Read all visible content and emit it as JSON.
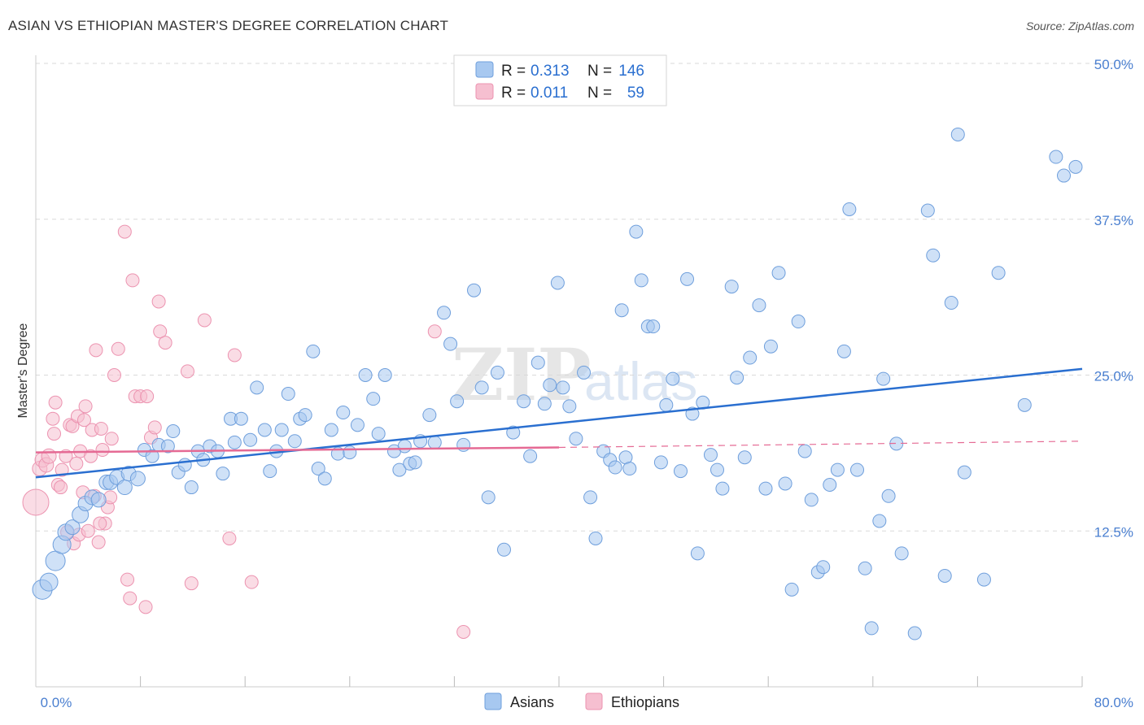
{
  "title": "ASIAN VS ETHIOPIAN MASTER'S DEGREE CORRELATION CHART",
  "source": "Source: ZipAtlas.com",
  "watermark": {
    "zip": "ZIP",
    "atlas": "atlas"
  },
  "colors": {
    "asians": "#a7c8f0",
    "asians_edge": "#6f9fdc",
    "asians_line": "#2a6fd0",
    "ethiopians": "#f6bfd0",
    "ethiopians_edge": "#ec93b0",
    "ethiopians_line": "#e56a94",
    "axis_text": "#4a7fd0",
    "grid": "#d9d9d9"
  },
  "legend": {
    "rows": [
      {
        "r_label": "R =",
        "r_value": "0.313",
        "n_label": "N =",
        "n_value": "146"
      },
      {
        "r_label": "R =",
        "r_value": "0.011",
        "n_label": "N =",
        "n_value": "59"
      }
    ]
  },
  "bottom_legend": [
    "Asians",
    "Ethiopians"
  ],
  "chart_data": {
    "type": "scatter",
    "title": "ASIAN VS ETHIOPIAN MASTER'S DEGREE CORRELATION CHART",
    "xlabel": "",
    "ylabel": "Master's Degree",
    "xlim": [
      0,
      80
    ],
    "ylim": [
      0,
      50
    ],
    "x_tick_labels": [
      "0.0%",
      "80.0%"
    ],
    "y_ticks": [
      12.5,
      25.0,
      37.5,
      50.0
    ],
    "y_tick_labels": [
      "12.5%",
      "25.0%",
      "37.5%",
      "50.0%"
    ],
    "grid": "horizontal dashed",
    "legend_position": "top-center",
    "series": [
      {
        "name": "Asians",
        "trend": {
          "x": [
            0,
            80
          ],
          "y": [
            16.8,
            25.5
          ]
        },
        "points": [
          [
            0.5,
            7.8,
            12
          ],
          [
            1.0,
            8.4,
            11
          ],
          [
            1.5,
            10.1,
            12
          ],
          [
            2.0,
            11.4,
            11
          ],
          [
            2.3,
            12.4,
            10
          ],
          [
            2.8,
            12.8,
            9
          ],
          [
            3.4,
            13.8,
            10
          ],
          [
            3.8,
            14.7,
            9
          ],
          [
            4.3,
            15.2,
            9
          ],
          [
            4.8,
            15.0,
            9
          ],
          [
            5.4,
            16.4,
            9
          ],
          [
            5.7,
            16.4,
            9
          ],
          [
            6.2,
            16.8,
            9
          ],
          [
            6.8,
            16.0,
            9
          ],
          [
            7.1,
            17.1,
            9
          ],
          [
            7.8,
            16.7,
            9
          ],
          [
            8.3,
            19.0,
            8
          ],
          [
            8.9,
            18.5,
            8
          ],
          [
            9.4,
            19.4,
            8
          ],
          [
            10.1,
            19.3,
            8
          ],
          [
            10.5,
            20.5,
            8
          ],
          [
            10.9,
            17.2,
            8
          ],
          [
            11.4,
            17.8,
            8
          ],
          [
            11.9,
            16.0,
            8
          ],
          [
            12.4,
            18.9,
            8
          ],
          [
            12.8,
            18.2,
            8
          ],
          [
            13.3,
            19.3,
            8
          ],
          [
            13.9,
            18.9,
            8
          ],
          [
            14.3,
            17.1,
            8
          ],
          [
            14.9,
            21.5,
            8
          ],
          [
            15.2,
            19.6,
            8
          ],
          [
            15.7,
            21.5,
            8
          ],
          [
            16.4,
            19.8,
            8
          ],
          [
            16.9,
            24.0,
            8
          ],
          [
            17.5,
            20.6,
            8
          ],
          [
            17.9,
            17.3,
            8
          ],
          [
            18.4,
            18.9,
            8
          ],
          [
            18.8,
            20.6,
            8
          ],
          [
            19.3,
            23.5,
            8
          ],
          [
            19.8,
            19.7,
            8
          ],
          [
            20.2,
            21.5,
            8
          ],
          [
            20.6,
            21.8,
            8
          ],
          [
            21.2,
            26.9,
            8
          ],
          [
            21.6,
            17.5,
            8
          ],
          [
            22.1,
            16.7,
            8
          ],
          [
            22.6,
            20.6,
            8
          ],
          [
            23.1,
            18.7,
            8
          ],
          [
            23.5,
            22.0,
            8
          ],
          [
            24.0,
            18.8,
            8
          ],
          [
            24.6,
            21.0,
            8
          ],
          [
            25.2,
            25.0,
            8
          ],
          [
            25.8,
            23.1,
            8
          ],
          [
            26.2,
            20.3,
            8
          ],
          [
            26.7,
            25.0,
            8
          ],
          [
            27.4,
            18.9,
            8
          ],
          [
            27.8,
            17.4,
            8
          ],
          [
            28.2,
            19.3,
            8
          ],
          [
            28.6,
            17.9,
            8
          ],
          [
            29.0,
            18.0,
            8
          ],
          [
            29.4,
            19.7,
            8
          ],
          [
            30.1,
            21.8,
            8
          ],
          [
            30.5,
            19.6,
            8
          ],
          [
            31.2,
            30.0,
            8
          ],
          [
            31.7,
            27.5,
            8
          ],
          [
            32.2,
            22.9,
            8
          ],
          [
            32.7,
            19.4,
            8
          ],
          [
            33.5,
            31.8,
            8
          ],
          [
            34.1,
            24.0,
            8
          ],
          [
            34.6,
            15.2,
            8
          ],
          [
            35.3,
            25.2,
            8
          ],
          [
            35.8,
            11.0,
            8
          ],
          [
            36.5,
            20.4,
            8
          ],
          [
            37.3,
            22.9,
            8
          ],
          [
            37.8,
            18.5,
            8
          ],
          [
            38.4,
            26.0,
            8
          ],
          [
            38.9,
            22.7,
            8
          ],
          [
            39.3,
            24.2,
            8
          ],
          [
            39.9,
            32.4,
            8
          ],
          [
            40.3,
            24.0,
            8
          ],
          [
            40.8,
            22.5,
            8
          ],
          [
            41.3,
            19.9,
            8
          ],
          [
            41.9,
            25.2,
            8
          ],
          [
            42.4,
            15.2,
            8
          ],
          [
            42.8,
            11.9,
            8
          ],
          [
            43.4,
            18.9,
            8
          ],
          [
            43.9,
            18.2,
            8
          ],
          [
            44.3,
            17.6,
            8
          ],
          [
            44.8,
            30.2,
            8
          ],
          [
            45.1,
            18.4,
            8
          ],
          [
            45.4,
            17.5,
            8
          ],
          [
            45.9,
            36.5,
            8
          ],
          [
            46.3,
            32.6,
            8
          ],
          [
            46.8,
            28.9,
            8
          ],
          [
            47.2,
            28.9,
            8
          ],
          [
            47.8,
            18.0,
            8
          ],
          [
            48.2,
            22.6,
            8
          ],
          [
            48.7,
            24.7,
            8
          ],
          [
            49.3,
            17.3,
            8
          ],
          [
            49.8,
            32.7,
            8
          ],
          [
            50.2,
            21.9,
            8
          ],
          [
            50.6,
            10.7,
            8
          ],
          [
            51.0,
            22.8,
            8
          ],
          [
            51.6,
            18.6,
            8
          ],
          [
            52.1,
            17.4,
            8
          ],
          [
            52.5,
            15.9,
            8
          ],
          [
            53.2,
            32.1,
            8
          ],
          [
            53.6,
            24.8,
            8
          ],
          [
            54.2,
            18.4,
            8
          ],
          [
            54.6,
            26.4,
            8
          ],
          [
            55.3,
            30.6,
            8
          ],
          [
            55.8,
            15.9,
            8
          ],
          [
            56.2,
            27.3,
            8
          ],
          [
            56.8,
            33.2,
            8
          ],
          [
            57.3,
            16.3,
            8
          ],
          [
            57.8,
            7.8,
            8
          ],
          [
            58.3,
            29.3,
            8
          ],
          [
            58.8,
            18.9,
            8
          ],
          [
            59.3,
            15.0,
            8
          ],
          [
            59.8,
            9.2,
            8
          ],
          [
            60.2,
            9.6,
            8
          ],
          [
            60.7,
            16.2,
            8
          ],
          [
            61.3,
            17.4,
            8
          ],
          [
            61.8,
            26.9,
            8
          ],
          [
            62.2,
            38.3,
            8
          ],
          [
            62.8,
            17.4,
            8
          ],
          [
            63.4,
            9.5,
            8
          ],
          [
            63.9,
            4.7,
            8
          ],
          [
            64.5,
            13.3,
            8
          ],
          [
            64.8,
            24.7,
            8
          ],
          [
            65.2,
            15.3,
            8
          ],
          [
            65.8,
            19.5,
            8
          ],
          [
            66.2,
            10.7,
            8
          ],
          [
            67.2,
            4.3,
            8
          ],
          [
            68.2,
            38.2,
            8
          ],
          [
            68.6,
            34.6,
            8
          ],
          [
            69.5,
            8.9,
            8
          ],
          [
            70.0,
            30.8,
            8
          ],
          [
            70.5,
            44.3,
            8
          ],
          [
            71.0,
            17.2,
            8
          ],
          [
            72.5,
            8.6,
            8
          ],
          [
            73.6,
            33.2,
            8
          ],
          [
            75.6,
            22.6,
            8
          ],
          [
            78.0,
            42.5,
            8
          ],
          [
            78.6,
            41.0,
            8
          ],
          [
            79.5,
            41.7,
            8
          ]
        ]
      },
      {
        "name": "Ethiopians",
        "trend": {
          "x": [
            0,
            40
          ],
          "y": [
            18.8,
            19.2
          ]
        },
        "trend_extension": {
          "x": [
            40,
            80
          ],
          "y": [
            19.2,
            19.7
          ]
        },
        "points": [
          [
            0.0,
            14.8,
            16
          ],
          [
            0.3,
            17.5,
            9
          ],
          [
            0.5,
            18.2,
            9
          ],
          [
            0.8,
            17.8,
            9
          ],
          [
            1.0,
            18.5,
            9
          ],
          [
            1.3,
            21.5,
            8
          ],
          [
            1.4,
            20.3,
            8
          ],
          [
            1.5,
            22.8,
            8
          ],
          [
            1.7,
            16.2,
            8
          ],
          [
            1.9,
            16.0,
            8
          ],
          [
            2.0,
            17.4,
            8
          ],
          [
            2.3,
            18.5,
            8
          ],
          [
            2.4,
            12.4,
            8
          ],
          [
            2.6,
            21.0,
            8
          ],
          [
            2.8,
            20.9,
            8
          ],
          [
            2.9,
            11.5,
            8
          ],
          [
            3.1,
            17.9,
            8
          ],
          [
            3.2,
            21.7,
            8
          ],
          [
            3.3,
            12.2,
            8
          ],
          [
            3.4,
            18.9,
            8
          ],
          [
            3.6,
            15.6,
            8
          ],
          [
            3.7,
            21.4,
            8
          ],
          [
            3.8,
            22.5,
            8
          ],
          [
            4.0,
            12.5,
            8
          ],
          [
            4.2,
            18.5,
            8
          ],
          [
            4.3,
            20.6,
            8
          ],
          [
            4.5,
            15.3,
            8
          ],
          [
            4.6,
            27.0,
            8
          ],
          [
            4.8,
            11.6,
            8
          ],
          [
            5.0,
            20.7,
            8
          ],
          [
            5.1,
            19.0,
            8
          ],
          [
            5.3,
            13.1,
            8
          ],
          [
            5.5,
            14.4,
            8
          ],
          [
            5.7,
            15.2,
            8
          ],
          [
            5.8,
            19.9,
            8
          ],
          [
            6.0,
            25.0,
            8
          ],
          [
            6.3,
            27.1,
            8
          ],
          [
            6.8,
            36.5,
            8
          ],
          [
            7.0,
            8.6,
            8
          ],
          [
            7.2,
            7.1,
            8
          ],
          [
            7.4,
            32.6,
            8
          ],
          [
            7.6,
            23.3,
            8
          ],
          [
            8.0,
            23.3,
            8
          ],
          [
            8.4,
            6.4,
            8
          ],
          [
            8.5,
            23.3,
            8
          ],
          [
            8.8,
            20.0,
            8
          ],
          [
            9.1,
            20.8,
            8
          ],
          [
            9.4,
            30.9,
            8
          ],
          [
            9.5,
            28.5,
            8
          ],
          [
            9.9,
            27.6,
            8
          ],
          [
            11.6,
            25.3,
            8
          ],
          [
            11.9,
            8.3,
            8
          ],
          [
            12.9,
            29.4,
            8
          ],
          [
            14.8,
            11.9,
            8
          ],
          [
            15.2,
            26.6,
            8
          ],
          [
            16.5,
            8.4,
            8
          ],
          [
            30.5,
            28.5,
            8
          ],
          [
            32.7,
            4.4,
            8
          ],
          [
            4.9,
            13.1,
            8
          ]
        ]
      }
    ]
  }
}
